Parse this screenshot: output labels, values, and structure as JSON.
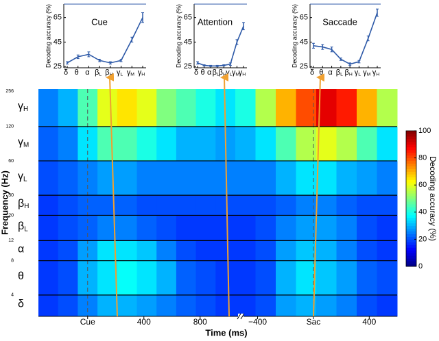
{
  "chart_data": [
    {
      "type": "line",
      "title": "Cue",
      "ylabel": "Decoding accuracy (%)",
      "categories": [
        "δ",
        "θ",
        "α",
        "βL",
        "βH",
        "γL",
        "γM",
        "γH"
      ],
      "values": [
        28,
        33,
        35,
        30,
        28,
        30,
        47,
        65
      ],
      "errors": [
        1,
        1.5,
        2,
        1,
        1,
        1,
        2,
        4
      ],
      "color": "#2e5aa8",
      "ylim": [
        24,
        76
      ],
      "yticks": [
        25,
        45,
        65
      ]
    },
    {
      "type": "line",
      "title": "Attention",
      "ylabel": "Decoding accuracy (%)",
      "categories": [
        "δ",
        "θ",
        "α",
        "βL",
        "βH",
        "γL",
        "γM",
        "γH"
      ],
      "values": [
        28,
        26,
        25.5,
        25.5,
        26,
        27,
        45,
        58
      ],
      "errors": [
        1,
        0.5,
        0.5,
        0.5,
        0.5,
        1,
        2,
        3
      ],
      "color": "#2e5aa8",
      "ylim": [
        24,
        76
      ],
      "yticks": [
        25,
        45,
        65
      ]
    },
    {
      "type": "line",
      "title": "Saccade",
      "ylabel": "Decoding accuracy (%)",
      "categories": [
        "δ",
        "θ",
        "α",
        "βL",
        "βH",
        "γL",
        "γM",
        "γH"
      ],
      "values": [
        42,
        41,
        39,
        31,
        27,
        29,
        48,
        69
      ],
      "errors": [
        2,
        2,
        2,
        1,
        1,
        1,
        2,
        3
      ],
      "color": "#2e5aa8",
      "ylim": [
        24,
        76
      ],
      "yticks": [
        25,
        45,
        65
      ]
    },
    {
      "type": "heatmap",
      "xlabel": "Time (ms)",
      "ylabel": "Frequency (Hz)",
      "log_y": true,
      "categories": [
        "δ",
        "θ",
        "α",
        "βL",
        "βH",
        "γL",
        "γM",
        "γH"
      ],
      "ylim": [
        2.6,
        256
      ],
      "yticks": [
        4,
        8,
        12,
        20,
        30,
        60,
        120,
        256
      ],
      "colormap": "jet",
      "segments": [
        {
          "xlim": [
            -350,
            1050
          ],
          "xticks": [
            {
              "value": 0,
              "label": "Cue"
            },
            400,
            800
          ],
          "x_edges": [
            -350,
            -210,
            -70,
            70,
            210,
            350,
            490,
            630,
            770,
            910,
            1050
          ],
          "z": [
            [
              18,
              20,
              25,
              30,
              30,
              28,
              25,
              22,
              20,
              18
            ],
            [
              18,
              20,
              30,
              35,
              38,
              35,
              30,
              22,
              20,
              18
            ],
            [
              18,
              20,
              28,
              35,
              35,
              32,
              25,
              20,
              18,
              18
            ],
            [
              18,
              20,
              22,
              25,
              25,
              22,
              20,
              18,
              18,
              18
            ],
            [
              18,
              20,
              22,
              22,
              22,
              20,
              20,
              20,
              20,
              20
            ],
            [
              20,
              22,
              25,
              28,
              28,
              25,
              25,
              25,
              25,
              25
            ],
            [
              22,
              25,
              35,
              45,
              45,
              40,
              35,
              30,
              30,
              28
            ],
            [
              25,
              30,
              45,
              60,
              65,
              60,
              50,
              45,
              40,
              35
            ]
          ]
        },
        {
          "xlim": [
            -560,
            600
          ],
          "xticks": [
            {
              "value": -400,
              "label": "−400"
            },
            {
              "value": 0,
              "label": "Sac"
            },
            400
          ],
          "x_edges": [
            -560,
            -415,
            -270,
            -125,
            20,
            165,
            310,
            455,
            600
          ],
          "z": [
            [
              18,
              20,
              28,
              30,
              28,
              25,
              20,
              18
            ],
            [
              18,
              20,
              30,
              35,
              32,
              28,
              22,
              20
            ],
            [
              18,
              20,
              28,
              32,
              30,
              25,
              20,
              18
            ],
            [
              18,
              20,
              25,
              28,
              28,
              25,
              20,
              18
            ],
            [
              20,
              20,
              22,
              25,
              25,
              22,
              20,
              20
            ],
            [
              25,
              25,
              30,
              35,
              35,
              30,
              28,
              25
            ],
            [
              30,
              35,
              45,
              55,
              60,
              55,
              45,
              35
            ],
            [
              40,
              55,
              70,
              80,
              90,
              85,
              70,
              55
            ]
          ]
        }
      ],
      "colorbar": {
        "label": "Decoding accuracy (%)",
        "lim": [
          0,
          100
        ],
        "ticks": [
          0,
          20,
          40,
          60,
          80,
          100
        ]
      }
    }
  ]
}
